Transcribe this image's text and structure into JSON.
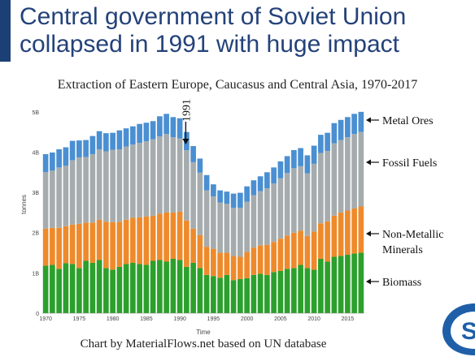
{
  "header": {
    "title_line1": "Central government of Soviet Union",
    "title_line2": "collapsed in 1991 with huge impact"
  },
  "footer": {
    "credit": "Chart by MaterialFlows.net based on UN database"
  },
  "colors": {
    "biomass": "#2ca02c",
    "non_metallic": "#ee8a2b",
    "fossil": "#a6acad",
    "metal": "#4a8fd1",
    "title": "#24427a"
  },
  "chart_data": {
    "type": "bar",
    "stacked": true,
    "title": "Extraction of Eastern Europe, Caucasus and Central Asia, 1970-2017",
    "xlabel": "Time",
    "ylabel": "tonnes",
    "ylim": [
      0,
      5.4
    ],
    "y_unit": "B",
    "y_ticks": [
      "0",
      "1B",
      "2B",
      "3B",
      "4B",
      "5B"
    ],
    "x_ticks": [
      "1970",
      "1975",
      "1980",
      "1985",
      "1990",
      "1995",
      "2000",
      "2005",
      "2010",
      "2015"
    ],
    "annotation": {
      "year": "1991"
    },
    "categories": [
      1970,
      1971,
      1972,
      1973,
      1974,
      1975,
      1976,
      1977,
      1978,
      1979,
      1980,
      1981,
      1982,
      1983,
      1984,
      1985,
      1986,
      1987,
      1988,
      1989,
      1990,
      1991,
      1992,
      1993,
      1994,
      1995,
      1996,
      1997,
      1998,
      1999,
      2000,
      2001,
      2002,
      2003,
      2004,
      2005,
      2006,
      2007,
      2008,
      2009,
      2010,
      2011,
      2012,
      2013,
      2014,
      2015,
      2016,
      2017
    ],
    "series": [
      {
        "name": "Biomass",
        "values": [
          1.18,
          1.2,
          1.1,
          1.24,
          1.22,
          1.12,
          1.3,
          1.25,
          1.32,
          1.12,
          1.08,
          1.15,
          1.22,
          1.25,
          1.22,
          1.2,
          1.3,
          1.32,
          1.28,
          1.35,
          1.32,
          1.15,
          1.25,
          1.12,
          0.95,
          0.92,
          0.88,
          0.95,
          0.82,
          0.85,
          0.87,
          0.95,
          0.98,
          0.95,
          1.02,
          1.05,
          1.1,
          1.12,
          1.2,
          1.12,
          1.08,
          1.35,
          1.28,
          1.4,
          1.42,
          1.45,
          1.48,
          1.5
        ]
      },
      {
        "name": "Non-Metallic Minerals",
        "values": [
          0.92,
          0.92,
          1.02,
          0.92,
          0.98,
          1.1,
          0.95,
          1.0,
          1.0,
          1.15,
          1.18,
          1.12,
          1.1,
          1.12,
          1.16,
          1.2,
          1.12,
          1.15,
          1.22,
          1.15,
          1.2,
          1.15,
          0.85,
          0.82,
          0.7,
          0.68,
          0.62,
          0.55,
          0.6,
          0.55,
          0.65,
          0.68,
          0.7,
          0.75,
          0.75,
          0.8,
          0.83,
          0.88,
          0.85,
          0.8,
          0.95,
          0.88,
          1.0,
          1.02,
          1.08,
          1.1,
          1.12,
          1.15
        ]
      },
      {
        "name": "Fossil Fuels",
        "values": [
          1.4,
          1.42,
          1.5,
          1.5,
          1.6,
          1.65,
          1.63,
          1.7,
          1.75,
          1.75,
          1.8,
          1.8,
          1.82,
          1.82,
          1.85,
          1.87,
          1.9,
          1.92,
          1.95,
          1.87,
          1.82,
          1.75,
          1.65,
          1.55,
          1.4,
          1.3,
          1.25,
          1.22,
          1.2,
          1.22,
          1.25,
          1.3,
          1.35,
          1.4,
          1.45,
          1.5,
          1.55,
          1.6,
          1.6,
          1.55,
          1.68,
          1.75,
          1.75,
          1.8,
          1.8,
          1.82,
          1.85,
          1.85
        ]
      },
      {
        "name": "Metal Ores",
        "values": [
          0.45,
          0.45,
          0.45,
          0.46,
          0.48,
          0.42,
          0.42,
          0.45,
          0.45,
          0.45,
          0.42,
          0.47,
          0.45,
          0.45,
          0.47,
          0.46,
          0.45,
          0.5,
          0.5,
          0.5,
          0.5,
          0.45,
          0.4,
          0.35,
          0.38,
          0.3,
          0.3,
          0.3,
          0.35,
          0.37,
          0.38,
          0.37,
          0.37,
          0.4,
          0.4,
          0.42,
          0.42,
          0.45,
          0.45,
          0.45,
          0.45,
          0.45,
          0.45,
          0.5,
          0.5,
          0.5,
          0.5,
          0.5
        ]
      }
    ],
    "legend": [
      {
        "label": "Metal Ores"
      },
      {
        "label": "Fossil Fuels"
      },
      {
        "label_line1": "Non-Metallic",
        "label_line2": "Minerals"
      },
      {
        "label": "Biomass"
      }
    ]
  }
}
